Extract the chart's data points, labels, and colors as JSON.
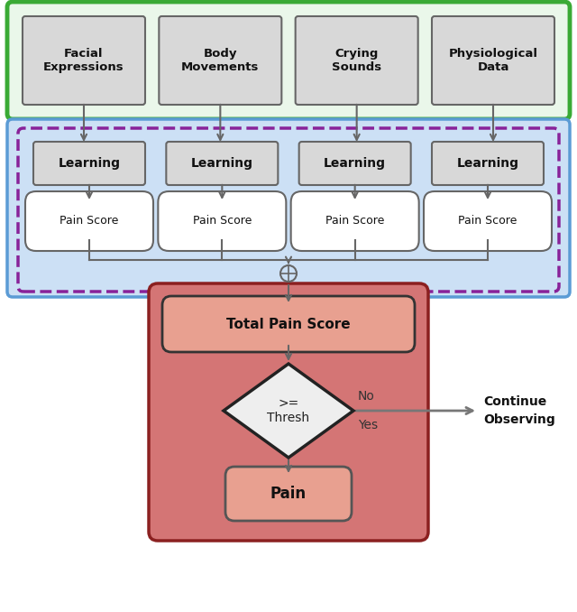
{
  "fig_width": 6.4,
  "fig_height": 6.78,
  "dpi": 100,
  "bg_color": "#ffffff",
  "input_labels": [
    "Facial\nExpressions",
    "Body\nMovements",
    "Crying\nSounds",
    "Physiological\nData"
  ],
  "input_box_color": "#d8d8d8",
  "input_box_edge": "#666666",
  "green_container_color": "#3aaa35",
  "green_container_fill": "#eaf7ea",
  "learning_labels": [
    "Learning",
    "Learning",
    "Learning",
    "Learning"
  ],
  "learning_box_color": "#d8d8d8",
  "learning_box_edge": "#666666",
  "pain_score_labels": [
    "Pain Score",
    "Pain Score",
    "Pain Score",
    "Pain Score"
  ],
  "pain_score_box_color": "#ffffff",
  "pain_score_box_edge": "#666666",
  "blue_container_color": "#5b9bd5",
  "blue_container_fill": "#cce0f5",
  "purple_dashed_color": "#882299",
  "total_pain_label": "Total Pain Score",
  "total_pain_box_fill": "#e8a090",
  "total_pain_box_edge": "#555555",
  "diamond_fill": "#eeeeee",
  "diamond_edge": "#222222",
  "diamond_label": ">=\nThresh",
  "pain_final_label": "Pain",
  "pain_final_fill": "#e8a090",
  "pain_final_edge": "#555555",
  "red_container_fill": "#d47575",
  "red_container_edge": "#8b2020",
  "arrow_color": "#666666",
  "no_label": "No",
  "yes_label": "Yes",
  "continue_label_1": "Continue",
  "continue_label_2": "Observing"
}
